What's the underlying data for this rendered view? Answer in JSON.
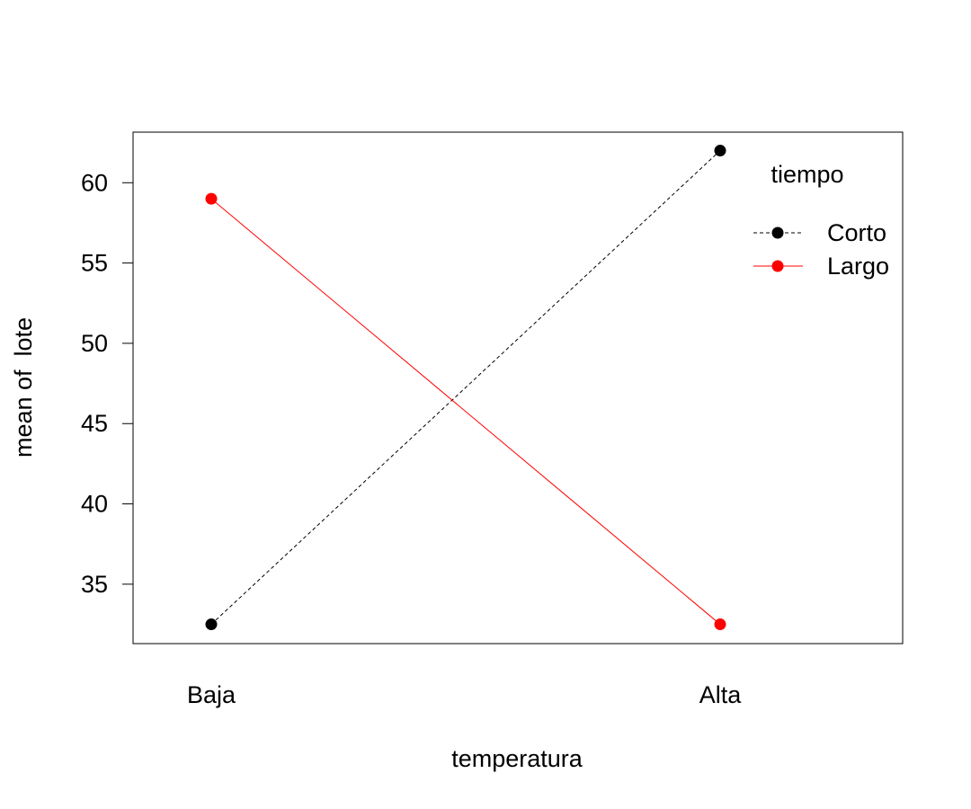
{
  "chart_data": {
    "type": "line",
    "title": "",
    "xlabel": "temperatura",
    "ylabel": "mean of  lote",
    "categories": [
      "Baja",
      "Alta"
    ],
    "ylim": [
      31.3,
      63.15
    ],
    "yticks": [
      35,
      40,
      45,
      50,
      55,
      60
    ],
    "yticks_labels": [
      "35",
      "40",
      "45",
      "50",
      "55",
      "60"
    ],
    "grid": false,
    "legend": {
      "title": "tiempo",
      "position": "top-right"
    },
    "series": [
      {
        "name": "Corto",
        "values": [
          32.5,
          62
        ],
        "color": "#000000",
        "line_style": "dashed",
        "marker": "filled-circle"
      },
      {
        "name": "Largo",
        "values": [
          59,
          32.5
        ],
        "color": "#ff0000",
        "line_style": "solid",
        "marker": "filled-circle"
      }
    ]
  }
}
